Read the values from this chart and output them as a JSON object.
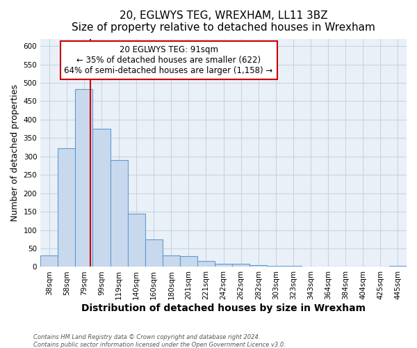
{
  "title": "20, EGLWYS TEG, WREXHAM, LL11 3BZ",
  "subtitle": "Size of property relative to detached houses in Wrexham",
  "xlabel": "Distribution of detached houses by size in Wrexham",
  "ylabel": "Number of detached properties",
  "bar_labels": [
    "38sqm",
    "58sqm",
    "79sqm",
    "99sqm",
    "119sqm",
    "140sqm",
    "160sqm",
    "180sqm",
    "201sqm",
    "221sqm",
    "242sqm",
    "262sqm",
    "282sqm",
    "303sqm",
    "323sqm",
    "343sqm",
    "364sqm",
    "384sqm",
    "404sqm",
    "425sqm",
    "445sqm"
  ],
  "bar_values": [
    32,
    322,
    483,
    375,
    290,
    145,
    75,
    32,
    29,
    16,
    9,
    8,
    5,
    3,
    2,
    1,
    1,
    1,
    0,
    0,
    2
  ],
  "bar_color": "#c9d9ed",
  "bar_edge_color": "#5b9bd5",
  "vline_color": "#cc0000",
  "annotation_title": "20 EGLWYS TEG: 91sqm",
  "annotation_line1": "← 35% of detached houses are smaller (622)",
  "annotation_line2": "64% of semi-detached houses are larger (1,158) →",
  "annotation_box_color": "#ffffff",
  "annotation_box_edge": "#cc0000",
  "ylim": [
    0,
    620
  ],
  "yticks": [
    0,
    50,
    100,
    150,
    200,
    250,
    300,
    350,
    400,
    450,
    500,
    550,
    600
  ],
  "bg_color": "#eaf0f8",
  "footer1": "Contains HM Land Registry data © Crown copyright and database right 2024.",
  "footer2": "Contains public sector information licensed under the Open Government Licence v3.0.",
  "title_fontsize": 11,
  "xlabel_fontsize": 10,
  "ylabel_fontsize": 9,
  "tick_fontsize": 7.5,
  "annotation_fontsize": 8.5
}
